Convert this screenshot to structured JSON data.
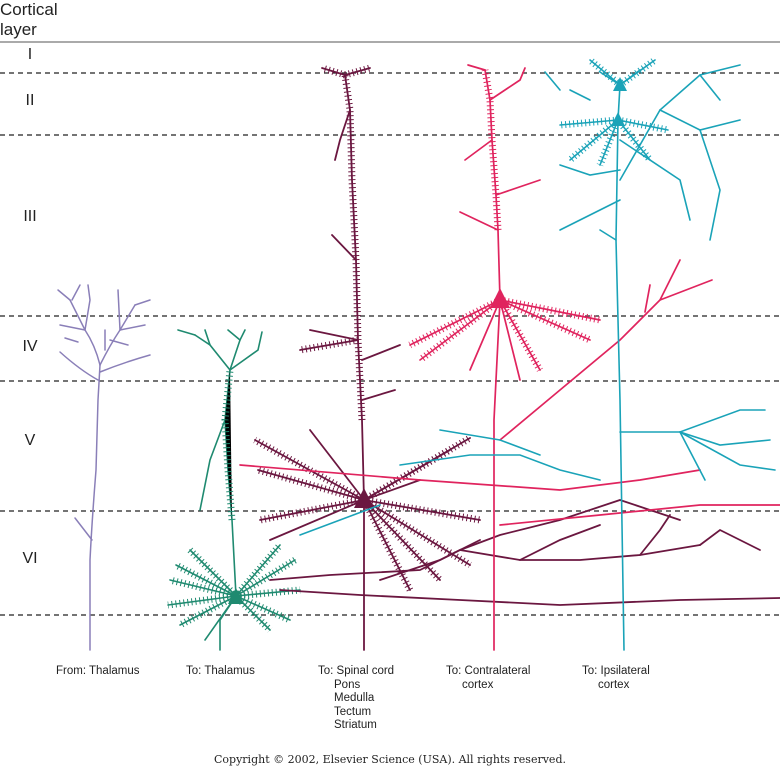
{
  "header": {
    "line1": "Cortical",
    "line2": "layer"
  },
  "layers": [
    {
      "name": "I"
    },
    {
      "name": "II"
    },
    {
      "name": "III"
    },
    {
      "name": "IV"
    },
    {
      "name": "V"
    },
    {
      "name": "VI"
    }
  ],
  "captions": {
    "from_thalamus": "From: Thalamus",
    "to_thalamus": "To: Thalamus",
    "to_spinal": [
      "To: Spinal cord",
      "Pons",
      "Medulla",
      "Tectum",
      "Striatum"
    ],
    "to_contralateral": [
      "To: Contralateral",
      "cortex"
    ],
    "to_ipsilateral": [
      "To: Ipsilateral",
      "cortex"
    ]
  },
  "copyright": "Copyright © 2002, Elsevier Science (USA). All rights reserved.",
  "colors": {
    "thalamic_afferent": "#8a7fb8",
    "corticothalamic": "#1f8a70",
    "subcortical": "#6b1740",
    "contralateral": "#e0245e",
    "ipsilateral": "#1aa3b8"
  }
}
